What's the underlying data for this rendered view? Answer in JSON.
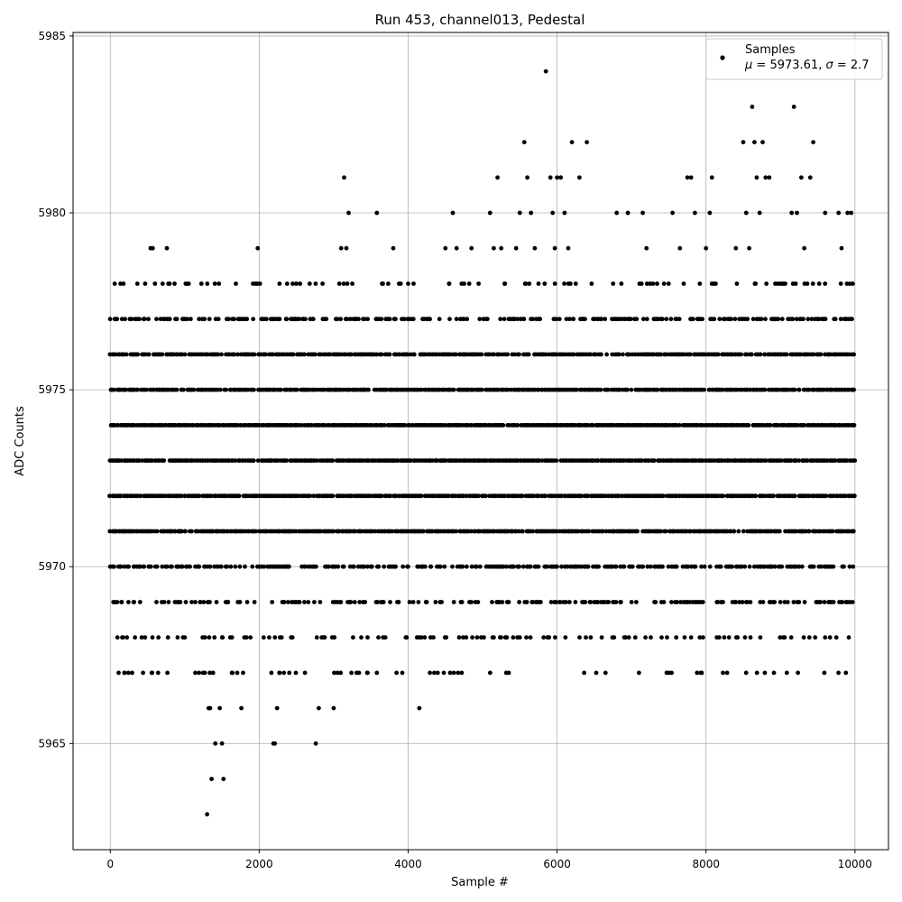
{
  "chart_data": {
    "type": "scatter",
    "title": "Run 453, channel013, Pedestal",
    "xlabel": "Sample #",
    "ylabel": "ADC Counts",
    "xlim": [
      -500,
      10450
    ],
    "ylim": [
      5962,
      5985.1
    ],
    "xticks": [
      0,
      2000,
      4000,
      6000,
      8000,
      10000
    ],
    "yticks": [
      5965,
      5970,
      5975,
      5980,
      5985
    ],
    "grid": true,
    "legend": {
      "placement": "top-right",
      "label": "Samples",
      "stats": {
        "mu": "5973.61",
        "sigma": "2.7"
      }
    },
    "series": [
      {
        "name": "Samples",
        "color": "#000000",
        "points": [
          [
            10,
            5975
          ],
          [
            30,
            5974
          ],
          [
            50,
            5972
          ],
          [
            70,
            5971
          ],
          [
            90,
            5973
          ],
          [
            110,
            5976
          ],
          [
            130,
            5970
          ],
          [
            150,
            5969
          ],
          [
            170,
            5968
          ],
          [
            190,
            5967
          ],
          [
            60,
            5978
          ],
          [
            70,
            5977
          ],
          [
            80,
            5973
          ],
          [
            100,
            5974
          ],
          [
            120,
            5975
          ],
          [
            140,
            5972
          ],
          [
            160,
            5971
          ],
          [
            180,
            5976
          ],
          [
            200,
            5973
          ],
          [
            220,
            5974
          ],
          [
            300,
            5975
          ],
          [
            320,
            5976
          ],
          [
            340,
            5972
          ],
          [
            360,
            5971
          ],
          [
            380,
            5970
          ],
          [
            400,
            5969
          ],
          [
            420,
            5968
          ],
          [
            440,
            5967
          ],
          [
            460,
            5977
          ],
          [
            480,
            5973
          ],
          [
            540,
            5979
          ],
          [
            570,
            5979
          ],
          [
            600,
            5978
          ],
          [
            620,
            5977
          ],
          [
            640,
            5976
          ],
          [
            660,
            5975
          ],
          [
            680,
            5974
          ],
          [
            700,
            5972
          ],
          [
            720,
            5971
          ],
          [
            740,
            5970
          ],
          [
            760,
            5979
          ],
          [
            780,
            5978
          ],
          [
            800,
            5977
          ],
          [
            820,
            5976
          ],
          [
            840,
            5975
          ],
          [
            860,
            5974
          ],
          [
            880,
            5973
          ],
          [
            900,
            5972
          ],
          [
            920,
            5971
          ],
          [
            940,
            5969
          ],
          [
            1000,
            5977
          ],
          [
            1030,
            5978
          ],
          [
            1060,
            5975
          ],
          [
            1090,
            5973
          ],
          [
            1120,
            5972
          ],
          [
            1150,
            5971
          ],
          [
            1180,
            5970
          ],
          [
            1210,
            5969
          ],
          [
            1240,
            5968
          ],
          [
            1270,
            5967
          ],
          [
            1300,
            5963
          ],
          [
            1320,
            5966
          ],
          [
            1340,
            5966
          ],
          [
            1360,
            5964
          ],
          [
            1380,
            5967
          ],
          [
            1410,
            5965
          ],
          [
            1440,
            5971
          ],
          [
            1470,
            5966
          ],
          [
            1500,
            5965
          ],
          [
            1520,
            5964
          ],
          [
            1550,
            5970
          ],
          [
            1580,
            5969
          ],
          [
            1610,
            5968
          ],
          [
            1640,
            5967
          ],
          [
            1670,
            5971
          ],
          [
            1700,
            5972
          ],
          [
            1730,
            5973
          ],
          [
            1760,
            5966
          ],
          [
            1790,
            5974
          ],
          [
            1820,
            5975
          ],
          [
            1950,
            5978
          ],
          [
            1980,
            5979
          ],
          [
            2010,
            5978
          ],
          [
            2040,
            5977
          ],
          [
            2070,
            5976
          ],
          [
            2100,
            5975
          ],
          [
            2130,
            5974
          ],
          [
            2160,
            5973
          ],
          [
            2190,
            5965
          ],
          [
            2210,
            5965
          ],
          [
            2240,
            5966
          ],
          [
            2270,
            5967
          ],
          [
            2300,
            5968
          ],
          [
            2330,
            5969
          ],
          [
            2360,
            5970
          ],
          [
            2390,
            5971
          ],
          [
            2420,
            5972
          ],
          [
            2450,
            5978
          ],
          [
            2480,
            5977
          ],
          [
            2510,
            5976
          ],
          [
            2600,
            5975
          ],
          [
            2650,
            5974
          ],
          [
            2700,
            5973
          ],
          [
            2760,
            5965
          ],
          [
            2800,
            5966
          ],
          [
            2850,
            5978
          ],
          [
            2900,
            5977
          ],
          [
            2950,
            5976
          ],
          [
            3000,
            5966
          ],
          [
            3050,
            5967
          ],
          [
            3100,
            5979
          ],
          [
            3140,
            5981
          ],
          [
            3170,
            5979
          ],
          [
            3200,
            5980
          ],
          [
            3250,
            5978
          ],
          [
            3300,
            5977
          ],
          [
            3350,
            5976
          ],
          [
            3400,
            5975
          ],
          [
            3450,
            5967
          ],
          [
            3500,
            5970
          ],
          [
            3580,
            5980
          ],
          [
            3650,
            5978
          ],
          [
            3700,
            5977
          ],
          [
            3750,
            5976
          ],
          [
            3800,
            5979
          ],
          [
            3850,
            5975
          ],
          [
            3900,
            5974
          ],
          [
            3950,
            5973
          ],
          [
            4000,
            5978
          ],
          [
            4050,
            5972
          ],
          [
            4100,
            5971
          ],
          [
            4150,
            5966
          ],
          [
            4200,
            5970
          ],
          [
            4250,
            5969
          ],
          [
            4300,
            5968
          ],
          [
            4350,
            5967
          ],
          [
            4400,
            5972
          ],
          [
            4450,
            5973
          ],
          [
            4500,
            5979
          ],
          [
            4550,
            5978
          ],
          [
            4600,
            5980
          ],
          [
            4650,
            5979
          ],
          [
            4700,
            5977
          ],
          [
            4750,
            5976
          ],
          [
            4800,
            5975
          ],
          [
            4850,
            5979
          ],
          [
            4900,
            5974
          ],
          [
            4950,
            5973
          ],
          [
            5000,
            5972
          ],
          [
            5050,
            5971
          ],
          [
            5100,
            5980
          ],
          [
            5150,
            5979
          ],
          [
            5200,
            5981
          ],
          [
            5250,
            5979
          ],
          [
            5300,
            5978
          ],
          [
            5350,
            5967
          ],
          [
            5400,
            5970
          ],
          [
            5450,
            5979
          ],
          [
            5500,
            5980
          ],
          [
            5560,
            5982
          ],
          [
            5600,
            5981
          ],
          [
            5650,
            5980
          ],
          [
            5700,
            5979
          ],
          [
            5750,
            5978
          ],
          [
            5800,
            5971
          ],
          [
            5850,
            5984
          ],
          [
            5880,
            5968
          ],
          [
            5910,
            5981
          ],
          [
            5940,
            5980
          ],
          [
            5970,
            5979
          ],
          [
            6000,
            5981
          ],
          [
            6050,
            5981
          ],
          [
            6100,
            5980
          ],
          [
            6150,
            5979
          ],
          [
            6200,
            5982
          ],
          [
            6250,
            5978
          ],
          [
            6300,
            5981
          ],
          [
            6350,
            5977
          ],
          [
            6400,
            5982
          ],
          [
            6450,
            5969
          ],
          [
            6500,
            5976
          ],
          [
            6550,
            5975
          ],
          [
            6600,
            5974
          ],
          [
            6650,
            5967
          ],
          [
            6700,
            5973
          ],
          [
            6750,
            5972
          ],
          [
            6800,
            5980
          ],
          [
            6850,
            5971
          ],
          [
            6900,
            5970
          ],
          [
            6950,
            5980
          ],
          [
            7000,
            5969
          ],
          [
            7050,
            5968
          ],
          [
            7100,
            5967
          ],
          [
            7150,
            5980
          ],
          [
            7200,
            5979
          ],
          [
            7250,
            5978
          ],
          [
            7300,
            5977
          ],
          [
            7350,
            5976
          ],
          [
            7400,
            5975
          ],
          [
            7450,
            5974
          ],
          [
            7500,
            5967
          ],
          [
            7550,
            5980
          ],
          [
            7600,
            5968
          ],
          [
            7650,
            5979
          ],
          [
            7700,
            5978
          ],
          [
            7750,
            5981
          ],
          [
            7800,
            5981
          ],
          [
            7850,
            5980
          ],
          [
            7880,
            5967
          ],
          [
            7900,
            5969
          ],
          [
            7950,
            5977
          ],
          [
            8000,
            5979
          ],
          [
            8050,
            5980
          ],
          [
            8080,
            5981
          ],
          [
            8120,
            5976
          ],
          [
            8160,
            5975
          ],
          [
            8200,
            5970
          ],
          [
            8250,
            5974
          ],
          [
            8300,
            5973
          ],
          [
            8350,
            5972
          ],
          [
            8400,
            5979
          ],
          [
            8450,
            5969
          ],
          [
            8500,
            5982
          ],
          [
            8540,
            5980
          ],
          [
            8580,
            5979
          ],
          [
            8620,
            5983
          ],
          [
            8650,
            5982
          ],
          [
            8680,
            5981
          ],
          [
            8720,
            5980
          ],
          [
            8760,
            5982
          ],
          [
            8800,
            5981
          ],
          [
            8850,
            5981
          ],
          [
            8890,
            5970
          ],
          [
            8930,
            5978
          ],
          [
            8970,
            5977
          ],
          [
            9010,
            5976
          ],
          [
            9050,
            5975
          ],
          [
            9100,
            5974
          ],
          [
            9150,
            5980
          ],
          [
            9180,
            5983
          ],
          [
            9220,
            5980
          ],
          [
            9250,
            5969
          ],
          [
            9280,
            5981
          ],
          [
            9320,
            5979
          ],
          [
            9360,
            5978
          ],
          [
            9400,
            5981
          ],
          [
            9420,
            5970
          ],
          [
            9440,
            5982
          ],
          [
            9480,
            5969
          ],
          [
            9520,
            5978
          ],
          [
            9560,
            5977
          ],
          [
            9600,
            5980
          ],
          [
            9640,
            5976
          ],
          [
            9680,
            5975
          ],
          [
            9720,
            5974
          ],
          [
            9750,
            5968
          ],
          [
            9780,
            5980
          ],
          [
            9820,
            5979
          ],
          [
            9850,
            5970
          ],
          [
            9880,
            5969
          ],
          [
            9900,
            5980
          ],
          [
            9930,
            5978
          ],
          [
            9950,
            5980
          ],
          [
            9960,
            5977
          ],
          [
            9970,
            5975
          ],
          [
            9975,
            5973
          ],
          [
            9980,
            5971
          ],
          [
            9985,
            5976
          ],
          [
            9990,
            5974
          ],
          [
            9995,
            5972
          ]
        ]
      }
    ],
    "bands": [
      {
        "y": 5978,
        "density": 0.18
      },
      {
        "y": 5977,
        "density": 0.45
      },
      {
        "y": 5976,
        "density": 0.8
      },
      {
        "y": 5975,
        "density": 0.9
      },
      {
        "y": 5974,
        "density": 0.95
      },
      {
        "y": 5973,
        "density": 0.95
      },
      {
        "y": 5972,
        "density": 0.95
      },
      {
        "y": 5971,
        "density": 0.9
      },
      {
        "y": 5970,
        "density": 0.55
      },
      {
        "y": 5969,
        "density": 0.35
      },
      {
        "y": 5968,
        "density": 0.22
      },
      {
        "y": 5967,
        "density": 0.12
      }
    ]
  }
}
